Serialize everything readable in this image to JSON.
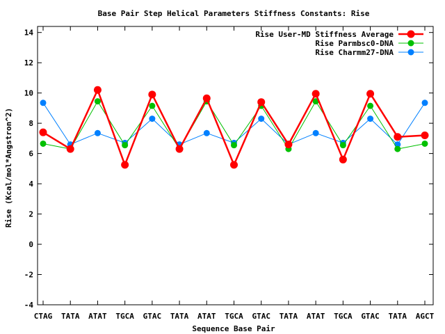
{
  "chart_data": {
    "type": "line",
    "title": "Base Pair Step Helical Parameters Stiffness Constants: Rise",
    "xlabel": "Sequence Base Pair",
    "ylabel": "Rise (Kcal/mol*Angstron^2)",
    "categories": [
      "CTAG",
      "TATA",
      "ATAT",
      "TGCA",
      "GTAC",
      "TATA",
      "ATAT",
      "TGCA",
      "GTAC",
      "TATA",
      "ATAT",
      "TGCA",
      "GTAC",
      "TATA",
      "AGCT"
    ],
    "ylim": [
      -4,
      14.4
    ],
    "yticks": [
      -4,
      -2,
      0,
      2,
      4,
      6,
      8,
      10,
      12,
      14
    ],
    "ytick_labels": [
      "-4",
      "-2",
      "0",
      "2",
      "4",
      "6",
      "8",
      "10",
      "12",
      "14"
    ],
    "grid": false,
    "legend_position": "top-right",
    "series": [
      {
        "name": "Rise User-MD Stiffness Average",
        "color": "#ff0000",
        "values": [
          7.4,
          6.3,
          10.2,
          5.25,
          9.9,
          6.3,
          9.65,
          5.25,
          9.4,
          6.6,
          9.95,
          5.6,
          9.95,
          7.1,
          7.2
        ]
      },
      {
        "name": "Rise Parmbsc0-DNA",
        "color": "#00c000",
        "values": [
          6.65,
          6.3,
          9.45,
          6.55,
          9.15,
          6.3,
          9.45,
          6.55,
          9.15,
          6.3,
          9.45,
          6.55,
          9.15,
          6.3,
          6.65
        ]
      },
      {
        "name": "Rise Charmm27-DNA",
        "color": "#0080ff",
        "values": [
          9.35,
          6.6,
          7.35,
          6.7,
          8.3,
          6.6,
          7.35,
          6.7,
          8.3,
          6.6,
          7.35,
          6.7,
          8.3,
          6.6,
          9.35
        ]
      }
    ]
  }
}
